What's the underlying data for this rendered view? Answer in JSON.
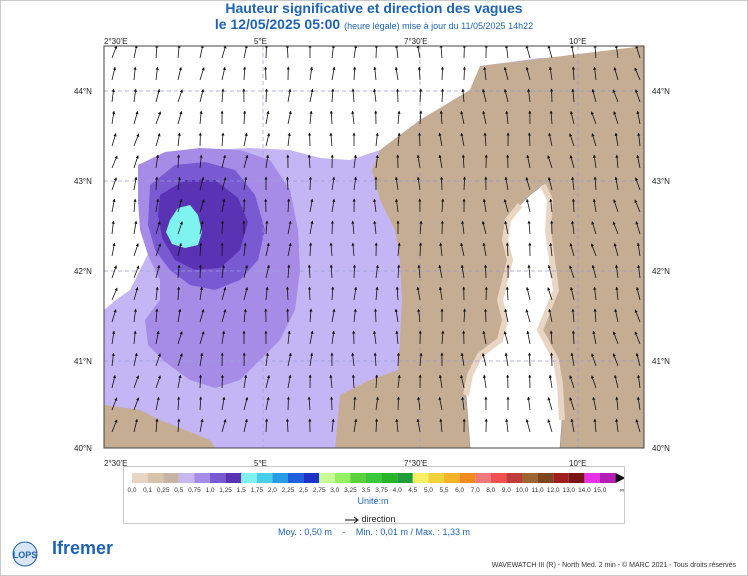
{
  "header": {
    "title": "Hauteur significative et direction des vagues",
    "date": "le 12/05/2025 05:00",
    "note": "(heure légale) mise à jour du 11/05/2025 14h22"
  },
  "axes": {
    "top_lon_labels": [
      "2°30'E",
      "5°E",
      "7°30'E",
      "10°E"
    ],
    "bottom_lon_labels": [
      "2°30'E",
      "5°E",
      "7°30'E",
      "10°E"
    ],
    "left_lat_labels": [
      "44°N",
      "43°N",
      "42°N",
      "41°N",
      "40°N"
    ],
    "right_lat_labels": [
      "44°N",
      "43°N",
      "42°N",
      "41°N",
      "40°N"
    ]
  },
  "map_data": {
    "lon_range": [
      2.3,
      10.9
    ],
    "lat_range": [
      40.0,
      44.4
    ],
    "max_height_m": 1.33,
    "max_location": "west of Sardinia/Corsica, ~3.4°E 42.6°N",
    "land_color": "#c4ad93",
    "island_color": "#ffffff"
  },
  "legend": {
    "labels": [
      "0,0",
      "0,1",
      "0,25",
      "0,5",
      "0,75",
      "1,0",
      "1,25",
      "1,5",
      "1,75",
      "2,0",
      "2,25",
      "2,5",
      "2,75",
      "3,0",
      "3,25",
      "3,5",
      "3,75",
      "4,0",
      "4,5",
      "5,0",
      "5,5",
      "6,0",
      "7,0",
      "8,0",
      "9,0",
      "10,0",
      "11,0",
      "12,0",
      "13,0",
      "14,0",
      "15,0"
    ],
    "colors": [
      "#e8d5c4",
      "#d9c2aa",
      "#c8b4a6",
      "#c7b7f0",
      "#a68ce6",
      "#7a5ad2",
      "#5a32b4",
      "#7ef3f0",
      "#48cdea",
      "#2a9be6",
      "#1e5fe0",
      "#1e32c8",
      "#c8fa96",
      "#96f064",
      "#5ad23c",
      "#3cc83c",
      "#28b428",
      "#1e9e3c",
      "#f5f064",
      "#f0d23c",
      "#f5b428",
      "#f08c1e",
      "#f07878",
      "#f05050",
      "#c03c3c",
      "#9e6432",
      "#7e461e",
      "#a01e1e",
      "#781414",
      "#e632e6",
      "#b41eb4"
    ],
    "overflow_label": "∞",
    "unit": "Unité:m",
    "direction_label": "direction"
  },
  "stats": {
    "moy": "Moy. : 0,50 m",
    "min": "Min. : 0,01 m / Max. : 1,33 m"
  },
  "footer": "WAVEWATCH III (R) - North Med. 2 min - © MARC 2021 - Tous droits réservés",
  "logos": {
    "lops": "LOPS",
    "ifremer": "Ifremer"
  }
}
